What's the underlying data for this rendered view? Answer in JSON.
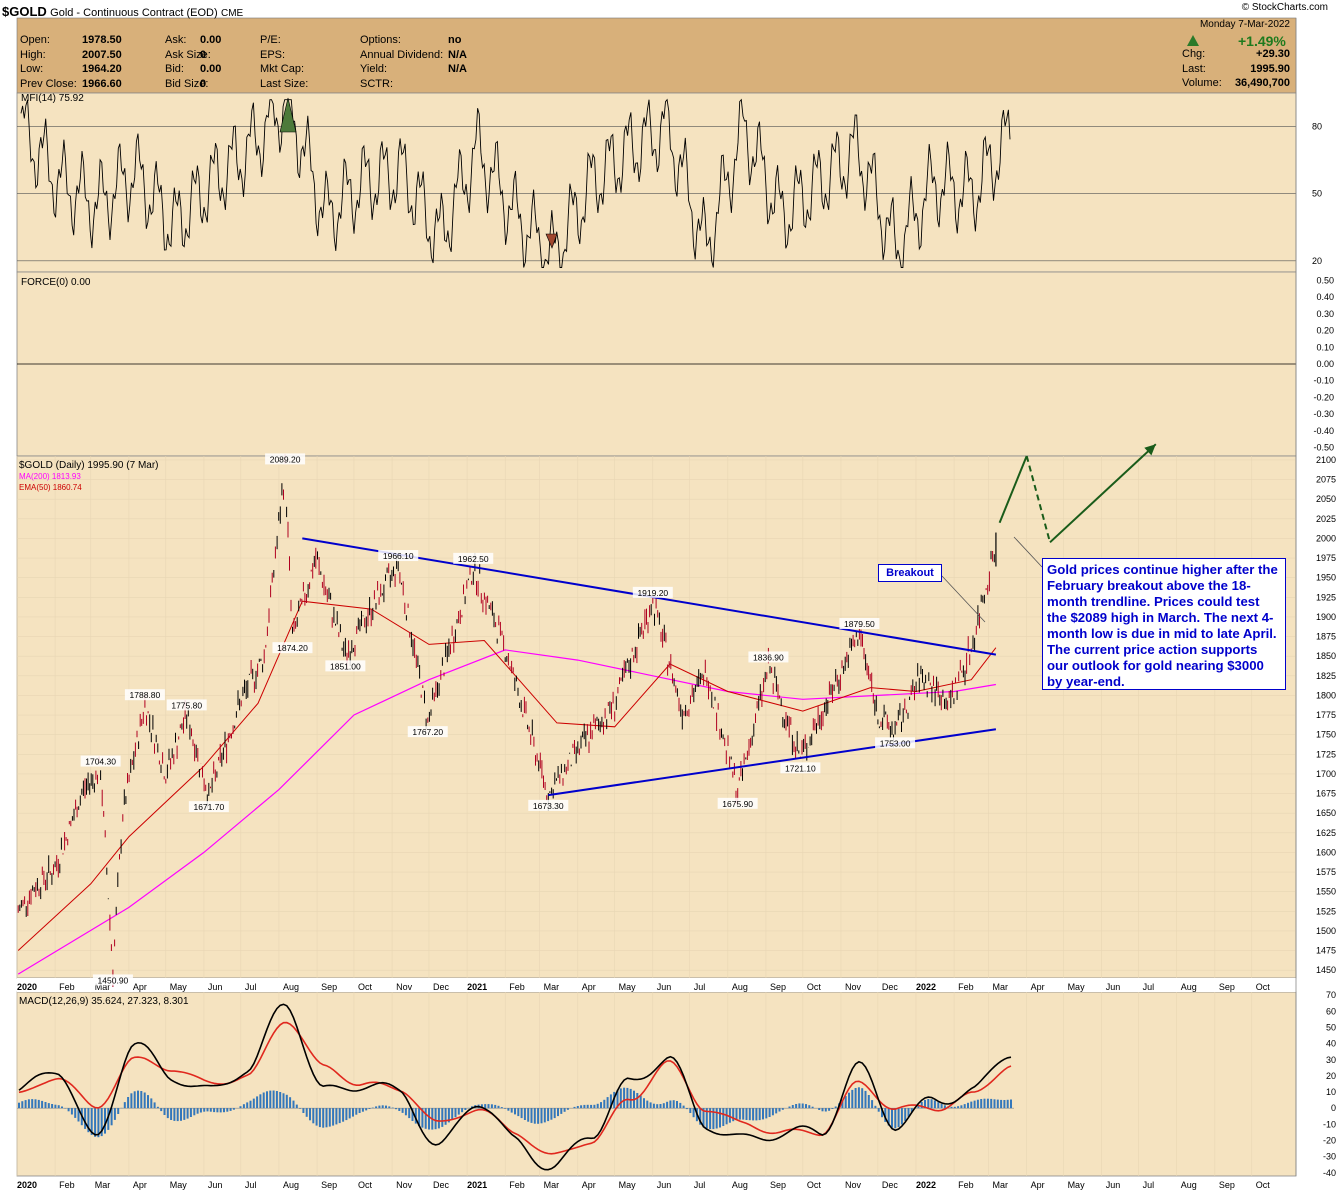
{
  "header": {
    "symbol": "$GOLD",
    "name": "Gold - Continuous Contract (EOD)",
    "exchange": "CME",
    "brand": "© StockCharts.com",
    "date": "Monday  7-Mar-2022",
    "change_pct": "+1.49%",
    "stats": [
      {
        "label": "Open:",
        "value": "1978.50"
      },
      {
        "label": "High:",
        "value": "2007.50"
      },
      {
        "label": "Low:",
        "value": "1964.20"
      },
      {
        "label": "Prev Close:",
        "value": "1966.60"
      }
    ],
    "ask": [
      {
        "label": "Ask:",
        "value": "0.00"
      },
      {
        "label": "Ask Size:",
        "value": "0"
      },
      {
        "label": "Bid:",
        "value": "0.00"
      },
      {
        "label": "Bid Size:",
        "value": "0"
      }
    ],
    "fundamentals": [
      {
        "label": "P/E:",
        "value": ""
      },
      {
        "label": "EPS:",
        "value": ""
      },
      {
        "label": "Mkt Cap:",
        "value": ""
      },
      {
        "label": "Last Size:",
        "value": ""
      }
    ],
    "options": [
      {
        "label": "Options:",
        "value": "no"
      },
      {
        "label": "Annual Dividend:",
        "value": "N/A"
      },
      {
        "label": "Yield:",
        "value": "N/A"
      },
      {
        "label": "SCTR:",
        "value": ""
      }
    ],
    "right": [
      {
        "label": "Chg:",
        "value": "+29.30"
      },
      {
        "label": "Last:",
        "value": "1995.90"
      },
      {
        "label": "Volume:",
        "value": "36,490,700"
      }
    ]
  },
  "colors": {
    "panel_bg": "#f5e3c0",
    "header_bg": "#d8b07a",
    "price_line": "#000000",
    "ma200": "#ff00ff",
    "ema50": "#cc0000",
    "trendline": "#0000cc",
    "projection": "#1a5c1a",
    "macd_hist": "#3377bb",
    "callout_text": "#0000cc",
    "up_arrow": "#2a7a2a"
  },
  "annotations": {
    "breakout_label": "Breakout",
    "callout_text": "Gold prices continue higher after the February breakout above the 18-month trendline. Prices could test the $2089 high in March. The next 4-month low is due in mid to late April. The current price action supports our outlook for gold nearing $3000 by year-end."
  },
  "chart_data": [
    {
      "type": "line",
      "panel": "mfi",
      "title": "MFI(14) 75.92",
      "y_ticks": [
        20,
        50,
        80
      ],
      "ylim": [
        15,
        95
      ],
      "x": [
        "2020-01",
        "2020-02",
        "2020-03",
        "2020-04",
        "2020-05",
        "2020-06",
        "2020-07",
        "2020-08",
        "2020-09",
        "2020-10",
        "2020-11",
        "2020-12",
        "2021-01",
        "2021-02",
        "2021-03",
        "2021-04",
        "2021-05",
        "2021-06",
        "2021-07",
        "2021-08",
        "2021-09",
        "2021-10",
        "2021-11",
        "2021-12",
        "2022-01",
        "2022-02",
        "2022-03"
      ],
      "series": [
        {
          "values": [
            80,
            55,
            45,
            60,
            35,
            55,
            70,
            92,
            40,
            55,
            60,
            30,
            70,
            40,
            22,
            55,
            70,
            80,
            25,
            80,
            40,
            55,
            70,
            25,
            55,
            50,
            76
          ]
        }
      ]
    },
    {
      "type": "line",
      "panel": "force",
      "title": "FORCE(0) 0.00",
      "y_ticks": [
        0.5,
        0.4,
        0.3,
        0.2,
        0.1,
        0.0,
        -0.1,
        -0.2,
        -0.3,
        -0.4,
        -0.5
      ],
      "ylim": [
        -0.55,
        0.55
      ],
      "series": [
        {
          "values": [
            0.0
          ]
        }
      ]
    },
    {
      "type": "line",
      "panel": "price",
      "title": "$GOLD (Daily) 1995.90 (7 Mar)",
      "legend": [
        {
          "name": "MA(200) 1813.93",
          "color": "#ff00ff"
        },
        {
          "name": "EMA(50) 1860.74",
          "color": "#cc0000"
        }
      ],
      "y_ticks": [
        2100,
        2075,
        2050,
        2025,
        2000,
        1975,
        1950,
        1925,
        1900,
        1875,
        1850,
        1825,
        1800,
        1775,
        1750,
        1725,
        1700,
        1675,
        1650,
        1625,
        1600,
        1575,
        1550,
        1525,
        1500,
        1475,
        1450
      ],
      "ylim": [
        1440,
        2105
      ],
      "x_labels": [
        "2020",
        "Feb",
        "Mar",
        "Apr",
        "May",
        "Jun",
        "Jul",
        "Aug",
        "Sep",
        "Oct",
        "Nov",
        "Dec",
        "2021",
        "Feb",
        "Mar",
        "Apr",
        "May",
        "Jun",
        "Jul",
        "Aug",
        "Sep",
        "Oct",
        "Nov",
        "Dec",
        "2022",
        "Feb",
        "Mar",
        "Apr",
        "May",
        "Jun",
        "Jul",
        "Aug",
        "Sep",
        "Oct"
      ],
      "price_points": [
        {
          "x": "2020-01-02",
          "y": 1525
        },
        {
          "x": "2020-01-15",
          "y": 1555
        },
        {
          "x": "2020-02-01",
          "y": 1580
        },
        {
          "x": "2020-02-24",
          "y": 1680
        },
        {
          "x": "2020-03-09",
          "y": 1704.3
        },
        {
          "x": "2020-03-19",
          "y": 1450.9
        },
        {
          "x": "2020-03-27",
          "y": 1650
        },
        {
          "x": "2020-04-14",
          "y": 1788.8
        },
        {
          "x": "2020-05-01",
          "y": 1700
        },
        {
          "x": "2020-05-18",
          "y": 1775.8
        },
        {
          "x": "2020-06-05",
          "y": 1671.7
        },
        {
          "x": "2020-06-30",
          "y": 1790
        },
        {
          "x": "2020-07-20",
          "y": 1850
        },
        {
          "x": "2020-08-06",
          "y": 2089.2
        },
        {
          "x": "2020-08-12",
          "y": 1874.2
        },
        {
          "x": "2020-08-31",
          "y": 1975
        },
        {
          "x": "2020-09-24",
          "y": 1851
        },
        {
          "x": "2020-10-15",
          "y": 1910
        },
        {
          "x": "2020-11-06",
          "y": 1966.1
        },
        {
          "x": "2020-11-30",
          "y": 1767.2
        },
        {
          "x": "2021-01-06",
          "y": 1962.5
        },
        {
          "x": "2021-02-01",
          "y": 1860
        },
        {
          "x": "2021-03-08",
          "y": 1673.3
        },
        {
          "x": "2021-04-01",
          "y": 1730
        },
        {
          "x": "2021-05-01",
          "y": 1790
        },
        {
          "x": "2021-06-01",
          "y": 1919.2
        },
        {
          "x": "2021-06-25",
          "y": 1780
        },
        {
          "x": "2021-07-15",
          "y": 1830
        },
        {
          "x": "2021-08-09",
          "y": 1675.9
        },
        {
          "x": "2021-09-03",
          "y": 1836.9
        },
        {
          "x": "2021-09-29",
          "y": 1721.1
        },
        {
          "x": "2021-10-20",
          "y": 1790
        },
        {
          "x": "2021-11-16",
          "y": 1879.5
        },
        {
          "x": "2021-12-01",
          "y": 1775
        },
        {
          "x": "2021-12-15",
          "y": 1753
        },
        {
          "x": "2022-01-05",
          "y": 1825
        },
        {
          "x": "2022-01-28",
          "y": 1790
        },
        {
          "x": "2022-02-15",
          "y": 1860
        },
        {
          "x": "2022-03-07",
          "y": 1995.9
        }
      ],
      "ma200_points": [
        {
          "x": "2020-01-02",
          "y": 1445
        },
        {
          "x": "2020-04-01",
          "y": 1530
        },
        {
          "x": "2020-06-01",
          "y": 1600
        },
        {
          "x": "2020-08-01",
          "y": 1680
        },
        {
          "x": "2020-10-01",
          "y": 1775
        },
        {
          "x": "2020-12-01",
          "y": 1820
        },
        {
          "x": "2021-02-01",
          "y": 1858
        },
        {
          "x": "2021-04-01",
          "y": 1845
        },
        {
          "x": "2021-06-01",
          "y": 1825
        },
        {
          "x": "2021-08-01",
          "y": 1805
        },
        {
          "x": "2021-10-01",
          "y": 1795
        },
        {
          "x": "2021-12-01",
          "y": 1800
        },
        {
          "x": "2022-02-01",
          "y": 1805
        },
        {
          "x": "2022-03-07",
          "y": 1813.93
        }
      ],
      "ema50_points": [
        {
          "x": "2020-01-02",
          "y": 1475
        },
        {
          "x": "2020-03-01",
          "y": 1560
        },
        {
          "x": "2020-04-01",
          "y": 1620
        },
        {
          "x": "2020-06-01",
          "y": 1710
        },
        {
          "x": "2020-07-15",
          "y": 1790
        },
        {
          "x": "2020-08-20",
          "y": 1920
        },
        {
          "x": "2020-10-15",
          "y": 1910
        },
        {
          "x": "2020-12-01",
          "y": 1865
        },
        {
          "x": "2021-01-15",
          "y": 1870
        },
        {
          "x": "2021-03-15",
          "y": 1765
        },
        {
          "x": "2021-05-01",
          "y": 1760
        },
        {
          "x": "2021-06-15",
          "y": 1840
        },
        {
          "x": "2021-08-01",
          "y": 1805
        },
        {
          "x": "2021-10-01",
          "y": 1780
        },
        {
          "x": "2021-11-25",
          "y": 1810
        },
        {
          "x": "2022-01-01",
          "y": 1805
        },
        {
          "x": "2022-02-15",
          "y": 1820
        },
        {
          "x": "2022-03-07",
          "y": 1860.74
        }
      ],
      "data_labels": [
        {
          "x": "2020-03-09",
          "y": 1704.3,
          "text": "1704.30"
        },
        {
          "x": "2020-03-19",
          "y": 1450.9,
          "text": "1450.90"
        },
        {
          "x": "2020-04-14",
          "y": 1788.8,
          "text": "1788.80"
        },
        {
          "x": "2020-05-18",
          "y": 1775.8,
          "text": "1775.80"
        },
        {
          "x": "2020-06-05",
          "y": 1671.7,
          "text": "1671.70"
        },
        {
          "x": "2020-08-06",
          "y": 2089.2,
          "text": "2089.20"
        },
        {
          "x": "2020-08-12",
          "y": 1874.2,
          "text": "1874.20"
        },
        {
          "x": "2020-09-24",
          "y": 1851.0,
          "text": "1851.00"
        },
        {
          "x": "2020-11-06",
          "y": 1966.1,
          "text": "1966.10"
        },
        {
          "x": "2020-11-30",
          "y": 1767.2,
          "text": "1767.20"
        },
        {
          "x": "2021-01-06",
          "y": 1962.5,
          "text": "1962.50"
        },
        {
          "x": "2021-03-08",
          "y": 1673.3,
          "text": "1673.30"
        },
        {
          "x": "2021-06-01",
          "y": 1919.2,
          "text": "1919.20"
        },
        {
          "x": "2021-08-09",
          "y": 1675.9,
          "text": "1675.90"
        },
        {
          "x": "2021-09-03",
          "y": 1836.9,
          "text": "1836.90"
        },
        {
          "x": "2021-09-29",
          "y": 1721.1,
          "text": "1721.10"
        },
        {
          "x": "2021-11-16",
          "y": 1879.5,
          "text": "1879.50"
        },
        {
          "x": "2021-12-15",
          "y": 1753.0,
          "text": "1753.00"
        }
      ],
      "trendlines": [
        {
          "name": "upper",
          "points": [
            {
              "x": "2020-08-20",
              "y": 2000
            },
            {
              "x": "2022-03-07",
              "y": 1852
            }
          ]
        },
        {
          "name": "lower",
          "points": [
            {
              "x": "2021-03-08",
              "y": 1673
            },
            {
              "x": "2022-03-07",
              "y": 1757
            }
          ]
        }
      ],
      "projection": [
        {
          "x": "2022-03-10",
          "y": 2020,
          "style": "solid"
        },
        {
          "x": "2022-04-01",
          "y": 2105,
          "style": "solid"
        },
        {
          "x": "2022-04-20",
          "y": 1995,
          "style": "dashed"
        },
        {
          "x": "2022-07-15",
          "y": 2120,
          "style": "solid"
        }
      ]
    },
    {
      "type": "bar",
      "panel": "macd",
      "title": "MACD(12,26,9) 35.624, 27.323, 8.301",
      "y_ticks": [
        70,
        60,
        50,
        40,
        30,
        20,
        10,
        0,
        -10,
        -20,
        -30,
        -40
      ],
      "ylim": [
        -42,
        72
      ],
      "x": [
        "2020-01",
        "2020-02",
        "2020-03",
        "2020-04",
        "2020-05",
        "2020-06",
        "2020-07",
        "2020-08",
        "2020-09",
        "2020-10",
        "2020-11",
        "2020-12",
        "2021-01",
        "2021-02",
        "2021-03",
        "2021-04",
        "2021-05",
        "2021-06",
        "2021-07",
        "2021-08",
        "2021-09",
        "2021-10",
        "2021-11",
        "2021-12",
        "2022-01",
        "2022-02",
        "2022-03"
      ],
      "series": [
        {
          "name": "MACD",
          "values": [
            10,
            25,
            -20,
            40,
            20,
            10,
            25,
            65,
            10,
            15,
            10,
            -25,
            5,
            -20,
            -38,
            -15,
            15,
            32,
            -10,
            -20,
            -15,
            -15,
            25,
            -10,
            5,
            10,
            35.624
          ]
        },
        {
          "name": "Signal",
          "values": [
            8,
            20,
            0,
            30,
            25,
            15,
            20,
            55,
            25,
            15,
            12,
            -10,
            0,
            -15,
            -30,
            -20,
            5,
            28,
            0,
            -10,
            -15,
            -15,
            15,
            0,
            0,
            8,
            27.323
          ]
        },
        {
          "name": "Histogram",
          "values": [
            2,
            5,
            -20,
            10,
            -5,
            -5,
            5,
            10,
            -15,
            0,
            -2,
            -15,
            5,
            -5,
            -8,
            5,
            10,
            4,
            -10,
            -10,
            0,
            0,
            10,
            -10,
            5,
            2,
            8.301
          ]
        }
      ]
    }
  ]
}
